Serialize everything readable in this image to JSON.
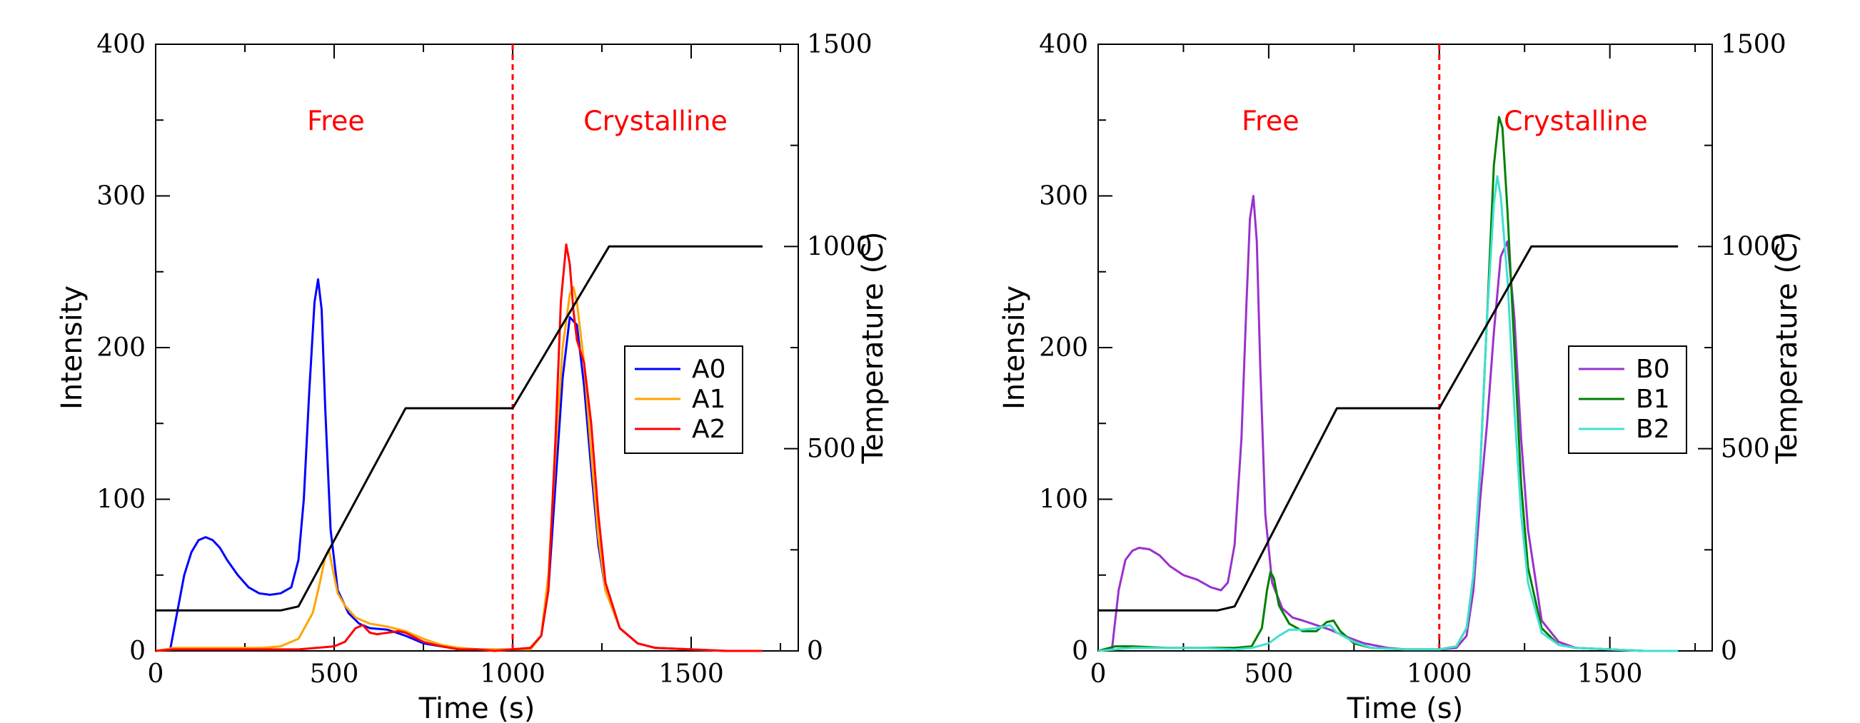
{
  "chart_data": [
    {
      "type": "line",
      "title": "",
      "xlabel": "Time (s)",
      "ylabel": "Intensity",
      "y2label": "Temperature (C)",
      "xlim": [
        0,
        1800
      ],
      "ylim": [
        0,
        400
      ],
      "y2lim": [
        0,
        1500
      ],
      "xticks": [
        0,
        500,
        1000,
        1500
      ],
      "yticks": [
        0,
        100,
        200,
        300,
        400
      ],
      "y2ticks": [
        0,
        500,
        1000,
        1500
      ],
      "grid": false,
      "legend_position": "right",
      "divider_x": 1000,
      "divider_color": "#ff0000",
      "annotations": [
        {
          "text": "Free",
          "x": 505,
          "y": 350,
          "color": "#ff0000"
        },
        {
          "text": "Crystalline",
          "x": 1400,
          "y": 350,
          "color": "#ff0000"
        }
      ],
      "series": [
        {
          "name": "A0",
          "color": "#0000ff",
          "axis": "left",
          "x": [
            40,
            60,
            80,
            100,
            120,
            140,
            160,
            180,
            200,
            230,
            260,
            290,
            320,
            350,
            380,
            400,
            415,
            430,
            445,
            455,
            465,
            475,
            490,
            510,
            540,
            570,
            600,
            650,
            700,
            750,
            800,
            850,
            900,
            950,
            1000,
            1050,
            1080,
            1100,
            1120,
            1140,
            1160,
            1180,
            1200,
            1220,
            1240,
            1260,
            1300,
            1350,
            1400,
            1500,
            1600,
            1700
          ],
          "y": [
            0,
            25,
            50,
            65,
            73,
            75,
            73,
            68,
            60,
            50,
            42,
            38,
            37,
            38,
            42,
            60,
            100,
            170,
            230,
            245,
            225,
            160,
            80,
            40,
            25,
            18,
            15,
            14,
            10,
            5,
            3,
            2,
            1,
            1,
            1,
            2,
            10,
            40,
            110,
            180,
            220,
            215,
            175,
            120,
            70,
            40,
            15,
            5,
            2,
            1,
            0,
            0
          ]
        },
        {
          "name": "A1",
          "color": "#ffa500",
          "axis": "left",
          "x": [
            0,
            50,
            100,
            200,
            300,
            350,
            400,
            440,
            460,
            475,
            485,
            495,
            510,
            530,
            560,
            600,
            650,
            700,
            750,
            800,
            850,
            900,
            950,
            1000,
            1050,
            1080,
            1100,
            1120,
            1140,
            1160,
            1170,
            1180,
            1200,
            1220,
            1240,
            1260,
            1300,
            1350,
            1400,
            1500,
            1600,
            1700
          ],
          "y": [
            0,
            2,
            2,
            2,
            2,
            3,
            8,
            25,
            45,
            62,
            67,
            55,
            38,
            30,
            22,
            18,
            16,
            13,
            8,
            4,
            2,
            1,
            1,
            1,
            1,
            10,
            50,
            130,
            200,
            235,
            240,
            230,
            190,
            130,
            75,
            40,
            15,
            5,
            2,
            1,
            0,
            0
          ]
        },
        {
          "name": "A2",
          "color": "#ff0000",
          "axis": "left",
          "x": [
            0,
            50,
            100,
            200,
            300,
            400,
            450,
            500,
            530,
            560,
            580,
            600,
            620,
            650,
            680,
            700,
            750,
            800,
            850,
            900,
            950,
            1000,
            1050,
            1080,
            1100,
            1120,
            1135,
            1150,
            1160,
            1170,
            1180,
            1200,
            1220,
            1240,
            1260,
            1300,
            1350,
            1400,
            1500,
            1600,
            1700
          ],
          "y": [
            0,
            1,
            1,
            1,
            1,
            1,
            2,
            3,
            6,
            15,
            17,
            12,
            11,
            12,
            13,
            12,
            6,
            3,
            1,
            1,
            0,
            1,
            2,
            10,
            40,
            140,
            230,
            268,
            255,
            225,
            205,
            190,
            150,
            90,
            45,
            15,
            5,
            2,
            1,
            0,
            0
          ]
        },
        {
          "name": "",
          "color": "#000000",
          "axis": "right",
          "x": [
            0,
            100,
            200,
            300,
            350,
            400,
            700,
            1000,
            1270,
            1700
          ],
          "y": [
            100,
            100,
            100,
            100,
            100,
            110,
            600,
            600,
            1000,
            1000
          ]
        }
      ]
    },
    {
      "type": "line",
      "title": "",
      "xlabel": "Time (s)",
      "ylabel": "Intensity",
      "y2label": "Temperature (C)",
      "xlim": [
        0,
        1800
      ],
      "ylim": [
        0,
        400
      ],
      "y2lim": [
        0,
        1500
      ],
      "xticks": [
        0,
        500,
        1000,
        1500
      ],
      "yticks": [
        0,
        100,
        200,
        300,
        400
      ],
      "y2ticks": [
        0,
        500,
        1000,
        1500
      ],
      "grid": false,
      "legend_position": "right",
      "divider_x": 1000,
      "divider_color": "#ff0000",
      "annotations": [
        {
          "text": "Free",
          "x": 505,
          "y": 350,
          "color": "#ff0000"
        },
        {
          "text": "Crystalline",
          "x": 1400,
          "y": 350,
          "color": "#ff0000"
        }
      ],
      "series": [
        {
          "name": "B0",
          "color": "#9932cc",
          "axis": "left",
          "x": [
            40,
            60,
            80,
            100,
            120,
            150,
            180,
            210,
            250,
            290,
            330,
            360,
            380,
            400,
            420,
            435,
            445,
            455,
            465,
            475,
            490,
            510,
            540,
            570,
            600,
            640,
            680,
            720,
            780,
            850,
            900,
            950,
            1000,
            1050,
            1080,
            1100,
            1120,
            1140,
            1160,
            1180,
            1200,
            1220,
            1240,
            1260,
            1300,
            1350,
            1400,
            1500,
            1600,
            1700
          ],
          "y": [
            0,
            40,
            60,
            66,
            68,
            67,
            63,
            56,
            50,
            47,
            42,
            40,
            45,
            70,
            140,
            230,
            285,
            300,
            270,
            190,
            90,
            45,
            28,
            22,
            20,
            17,
            14,
            10,
            5,
            2,
            1,
            1,
            1,
            2,
            10,
            40,
            100,
            150,
            210,
            260,
            270,
            220,
            140,
            80,
            20,
            6,
            2,
            1,
            0,
            0
          ]
        },
        {
          "name": "B1",
          "color": "#008000",
          "axis": "left",
          "x": [
            0,
            50,
            100,
            200,
            300,
            400,
            450,
            480,
            495,
            505,
            515,
            530,
            560,
            600,
            640,
            670,
            690,
            710,
            750,
            800,
            900,
            1000,
            1050,
            1080,
            1100,
            1120,
            1140,
            1160,
            1175,
            1185,
            1200,
            1220,
            1240,
            1260,
            1300,
            1350,
            1400,
            1500,
            1600,
            1700
          ],
          "y": [
            0,
            3,
            3,
            2,
            2,
            2,
            3,
            15,
            40,
            52,
            48,
            30,
            18,
            13,
            13,
            19,
            20,
            13,
            5,
            2,
            1,
            1,
            3,
            15,
            50,
            120,
            220,
            320,
            352,
            345,
            290,
            200,
            110,
            55,
            15,
            4,
            2,
            1,
            0,
            0
          ]
        },
        {
          "name": "B2",
          "color": "#40e0d0",
          "axis": "left",
          "x": [
            0,
            50,
            100,
            200,
            300,
            400,
            450,
            500,
            530,
            560,
            600,
            640,
            680,
            700,
            750,
            800,
            900,
            1000,
            1050,
            1080,
            1100,
            1120,
            1140,
            1160,
            1170,
            1180,
            1200,
            1220,
            1240,
            1260,
            1300,
            1350,
            1400,
            1500,
            1600,
            1700
          ],
          "y": [
            0,
            1,
            2,
            2,
            2,
            1,
            2,
            5,
            10,
            14,
            14,
            15,
            17,
            12,
            6,
            2,
            1,
            1,
            3,
            15,
            50,
            120,
            220,
            295,
            313,
            300,
            245,
            160,
            90,
            45,
            12,
            4,
            2,
            1,
            0,
            0
          ]
        },
        {
          "name": "",
          "color": "#000000",
          "axis": "right",
          "x": [
            0,
            100,
            200,
            300,
            350,
            400,
            700,
            1000,
            1270,
            1700
          ],
          "y": [
            100,
            100,
            100,
            100,
            100,
            110,
            600,
            600,
            1000,
            1000
          ]
        }
      ]
    }
  ]
}
